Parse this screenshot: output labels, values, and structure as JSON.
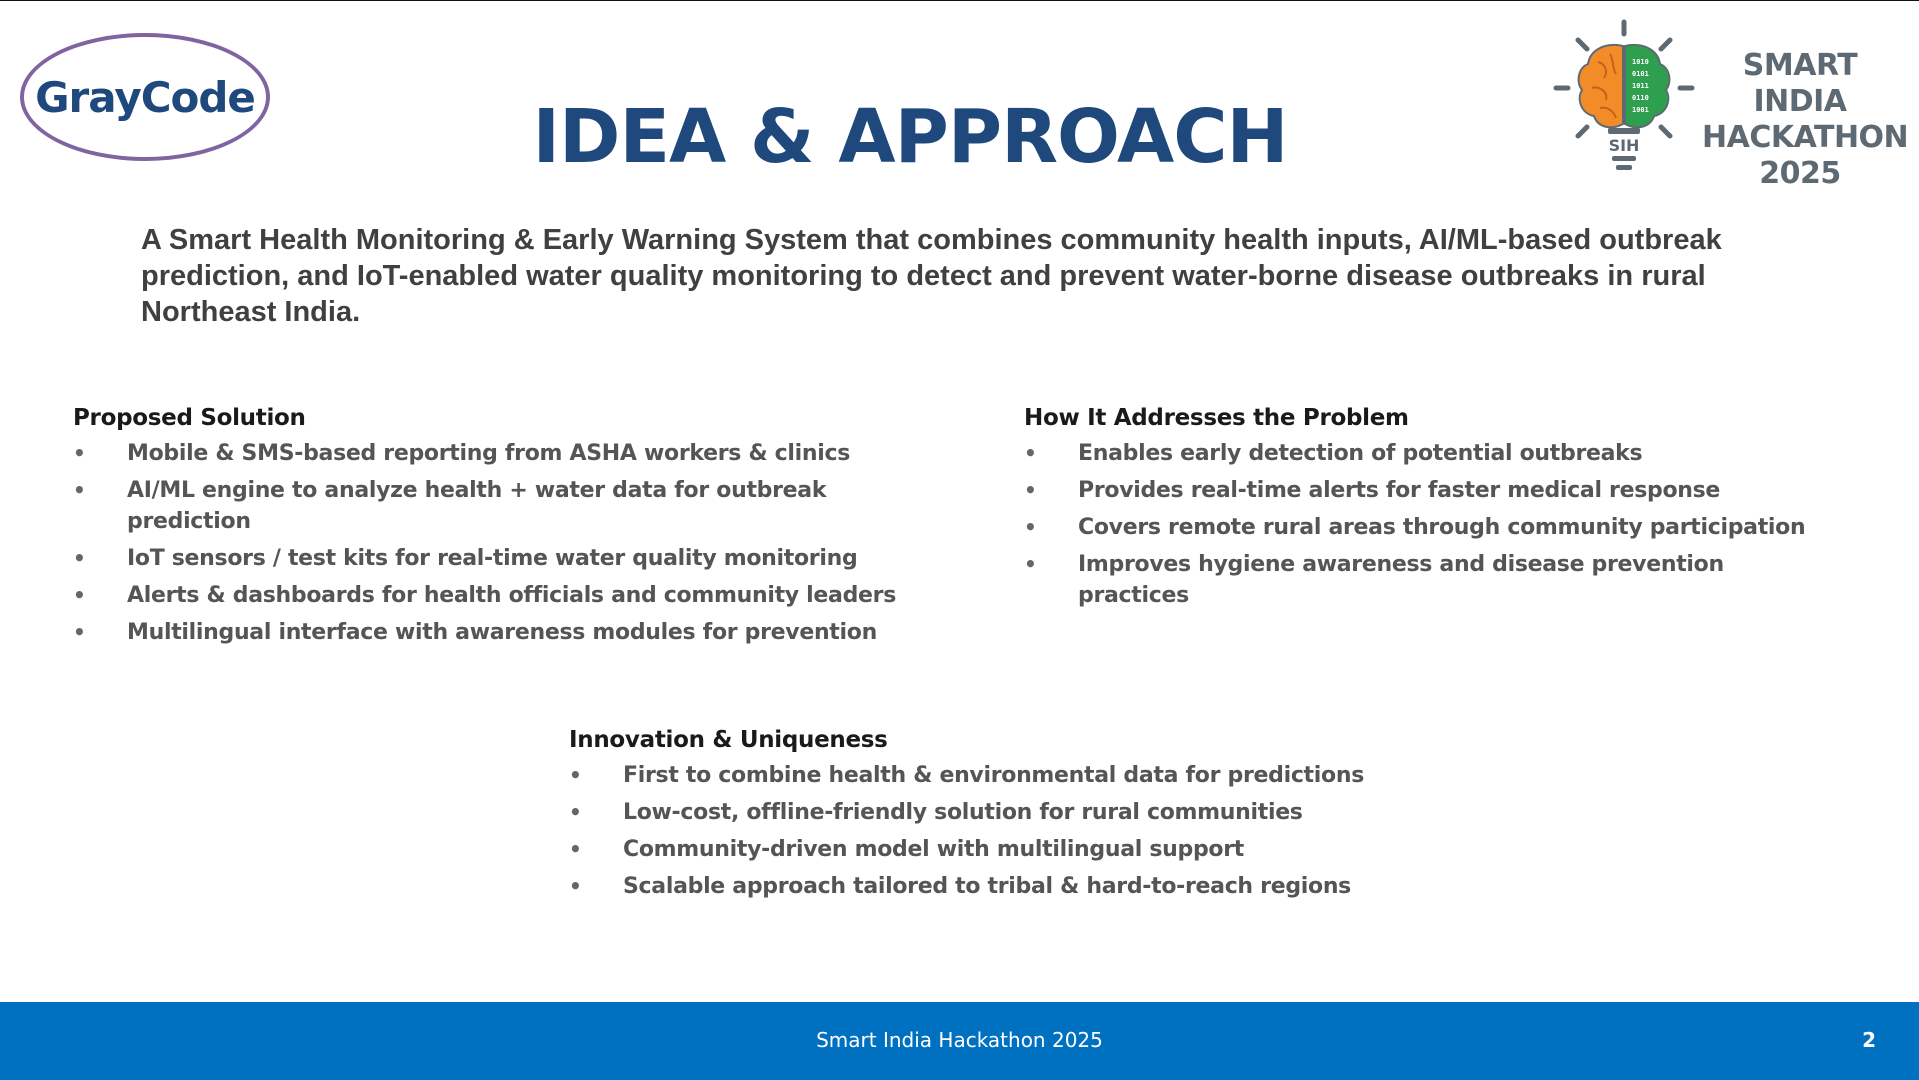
{
  "header": {
    "team_logo_text": "GrayCode",
    "title": "IDEA & APPROACH",
    "sih_logo": {
      "line1": "SMART INDIA",
      "line2": "HACKATHON",
      "line3": "2025",
      "badge": "SIH",
      "icon": "brain-lightbulb-icon"
    }
  },
  "summary": "A Smart Health Monitoring & Early Warning System that combines community health inputs, AI/ML-based outbreak prediction, and IoT-enabled water quality monitoring to detect and prevent water-borne disease outbreaks in rural Northeast India.",
  "sections": {
    "solution": {
      "heading": "Proposed Solution",
      "items": [
        "Mobile & SMS-based reporting from ASHA workers & clinics",
        "AI/ML engine to analyze health + water data for outbreak prediction",
        "IoT sensors / test kits for real-time water quality monitoring",
        "Alerts & dashboards for health officials and community leaders",
        "Multilingual interface with awareness modules for prevention"
      ]
    },
    "problem": {
      "heading": "How It Addresses the Problem",
      "items": [
        "Enables early detection of potential outbreaks",
        "Provides real-time alerts for faster medical response",
        "Covers remote rural areas through community participation",
        "Improves hygiene awareness and disease prevention practices"
      ]
    },
    "innovation": {
      "heading": "Innovation & Uniqueness",
      "items": [
        "First to combine health & environmental data for predictions",
        "Low-cost, offline-friendly solution for rural communities",
        "Community-driven model with multilingual support",
        "Scalable approach tailored to tribal & hard-to-reach regions"
      ]
    }
  },
  "bullet_glyph": "•",
  "footer": {
    "text": "Smart India Hackathon 2025",
    "page_number": "2"
  },
  "colors": {
    "title": "#1f497d",
    "logo_border": "#8064a2",
    "footer_bg": "#0070c0",
    "brain_left": "#f28c28",
    "brain_right": "#2e9e4f"
  }
}
